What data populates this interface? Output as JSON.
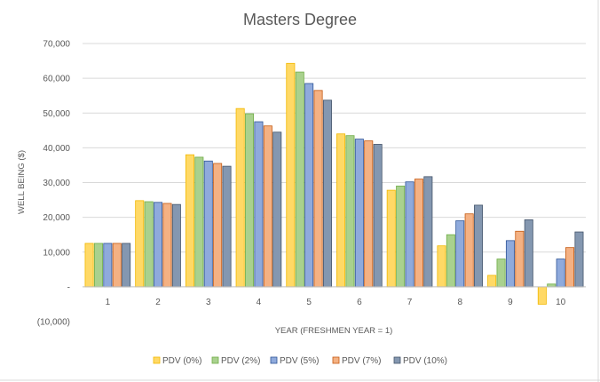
{
  "chart_data": {
    "type": "bar",
    "title": "Masters Degree",
    "xlabel": "YEAR (FRESHMEN YEAR = 1)",
    "ylabel": "WELL BEING ($)",
    "ylim": [
      -10000,
      70000
    ],
    "yticks": [
      -10000,
      0,
      10000,
      20000,
      30000,
      40000,
      50000,
      60000,
      70000
    ],
    "ytick_labels": [
      "(10,000)",
      "-",
      "10,000",
      "20,000",
      "30,000",
      "40,000",
      "50,000",
      "60,000",
      "70,000"
    ],
    "categories": [
      "1",
      "2",
      "3",
      "4",
      "5",
      "6",
      "7",
      "8",
      "9",
      "10"
    ],
    "grid": true,
    "legend_position": "bottom",
    "series": [
      {
        "name": "PDV (0%)",
        "color": "#ffd966",
        "stroke": "#f2b800",
        "values": [
          12500,
          24800,
          38000,
          51300,
          64300,
          44000,
          27800,
          11800,
          3300,
          -5000
        ]
      },
      {
        "name": "PDV (2%)",
        "color": "#a9d18e",
        "stroke": "#70ad47",
        "values": [
          12500,
          24500,
          37300,
          49800,
          61800,
          43500,
          29000,
          15000,
          8000,
          800
        ]
      },
      {
        "name": "PDV (5%)",
        "color": "#8faadc",
        "stroke": "#2f5597",
        "values": [
          12500,
          24300,
          36200,
          47500,
          58500,
          42500,
          30200,
          19000,
          13300,
          8000
        ]
      },
      {
        "name": "PDV (7%)",
        "color": "#f4b183",
        "stroke": "#c55a11",
        "values": [
          12500,
          24000,
          35500,
          46300,
          56500,
          42000,
          31000,
          21000,
          16000,
          11300
        ]
      },
      {
        "name": "PDV (10%)",
        "color": "#8497b0",
        "stroke": "#44546a",
        "values": [
          12500,
          23700,
          34700,
          44500,
          53700,
          41000,
          31700,
          23500,
          19300,
          15800
        ]
      }
    ]
  }
}
